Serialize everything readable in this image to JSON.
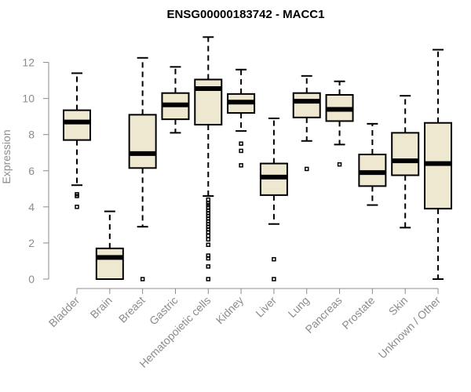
{
  "chart_data": {
    "type": "boxplot",
    "title": "ENSG00000183742 - MACC1",
    "xlabel": "",
    "ylabel": "Expression",
    "ylim": [
      0,
      13.5
    ],
    "yticks": [
      0,
      2,
      4,
      6,
      8,
      10,
      12
    ],
    "categories": [
      "Bladder",
      "Brain",
      "Breast",
      "Gastric",
      "Hematopoietic cells",
      "Kidney",
      "Liver",
      "Lung",
      "Pancreas",
      "Prostate",
      "Skin",
      "Unknown / Other"
    ],
    "boxes": [
      {
        "min": 5.2,
        "q1": 7.7,
        "median": 8.7,
        "q3": 9.35,
        "max": 11.4,
        "outliers": [
          4.6,
          4.7,
          4.0
        ]
      },
      {
        "min": 0.0,
        "q1": 0.0,
        "median": 1.2,
        "q3": 1.7,
        "max": 3.75,
        "outliers": []
      },
      {
        "min": 2.9,
        "q1": 6.15,
        "median": 6.95,
        "q3": 9.1,
        "max": 12.25,
        "outliers": [
          0.0
        ]
      },
      {
        "min": 8.1,
        "q1": 8.85,
        "median": 9.65,
        "q3": 10.3,
        "max": 11.75,
        "outliers": []
      },
      {
        "min": 4.6,
        "q1": 8.55,
        "median": 10.55,
        "q3": 11.05,
        "max": 13.4,
        "outliers": [
          4.4,
          4.2,
          4.1,
          3.95,
          3.8,
          3.65,
          3.5,
          3.35,
          3.2,
          3.05,
          2.9,
          2.75,
          2.6,
          2.4,
          2.2,
          1.9,
          1.3,
          1.15,
          0.7,
          0.0
        ]
      },
      {
        "min": 8.2,
        "q1": 9.2,
        "median": 9.8,
        "q3": 10.25,
        "max": 11.6,
        "outliers": [
          7.5,
          7.1,
          6.3
        ]
      },
      {
        "min": 3.05,
        "q1": 4.65,
        "median": 5.65,
        "q3": 6.4,
        "max": 8.9,
        "outliers": [
          1.1,
          0.0
        ]
      },
      {
        "min": 7.65,
        "q1": 8.95,
        "median": 9.85,
        "q3": 10.3,
        "max": 11.25,
        "outliers": [
          6.1
        ]
      },
      {
        "min": 7.45,
        "q1": 8.75,
        "median": 9.4,
        "q3": 10.2,
        "max": 10.95,
        "outliers": [
          6.35
        ]
      },
      {
        "min": 4.1,
        "q1": 5.15,
        "median": 5.9,
        "q3": 6.9,
        "max": 8.6,
        "outliers": []
      },
      {
        "min": 2.85,
        "q1": 5.75,
        "median": 6.55,
        "q3": 8.1,
        "max": 10.15,
        "outliers": []
      },
      {
        "min": 0.0,
        "q1": 3.9,
        "median": 6.4,
        "q3": 8.65,
        "max": 12.7,
        "outliers": []
      }
    ],
    "colors": {
      "box_fill": "#efe8d0",
      "line": "#000000",
      "axis": "#8c8c8c"
    }
  }
}
